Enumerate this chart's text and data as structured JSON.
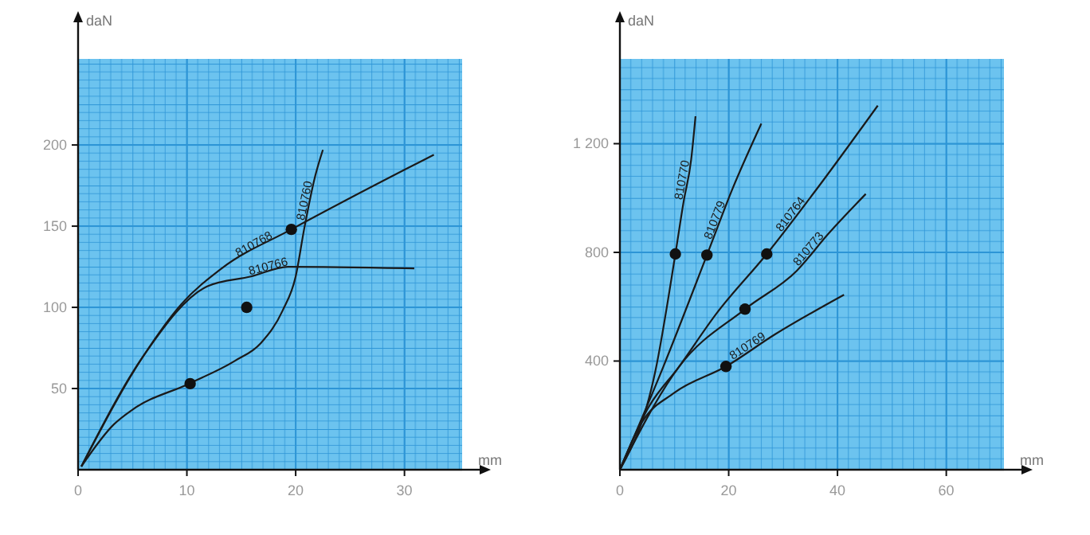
{
  "chart_data": [
    {
      "type": "line",
      "xlabel": "mm",
      "ylabel": "daN",
      "xlim": [
        0,
        35.3
      ],
      "ylim": [
        0,
        253
      ],
      "xticks": [
        0,
        10,
        20,
        30
      ],
      "yticks": [
        50,
        100,
        150,
        200
      ],
      "grid": true,
      "marker": "none",
      "line_style": "solid",
      "legend": false,
      "series": [
        {
          "name": "810768",
          "color": "#1a1a1a",
          "x": [
            0.3,
            6,
            9.5,
            13.2,
            19.6,
            32.7
          ],
          "values": [
            2,
            70,
            102,
            124,
            148,
            194
          ]
        },
        {
          "name": "810766",
          "color": "#1a1a1a",
          "x": [
            0.3,
            6,
            11.9,
            15.9,
            19.3,
            30.9
          ],
          "values": [
            2,
            70,
            113,
            119,
            125,
            124
          ]
        },
        {
          "name": "810760",
          "color": "#1a1a1a",
          "x": [
            0.3,
            3.3,
            5,
            10.2,
            14.4,
            16.8,
            18.8,
            20,
            20.8,
            21.8,
            22.5
          ],
          "values": [
            2,
            28,
            37,
            53,
            67,
            78,
            98,
            119,
            149,
            181,
            197
          ]
        },
        {
          "type": "scatter",
          "marker": "circle",
          "color": "#111111",
          "x": [
            10.3,
            19.6,
            15.5
          ],
          "values": [
            53,
            148,
            100
          ]
        }
      ]
    },
    {
      "type": "line",
      "xlabel": "mm",
      "ylabel": "daN",
      "xlim": [
        0,
        70.6
      ],
      "ylim": [
        0,
        1512
      ],
      "xticks": [
        0,
        20,
        40,
        60
      ],
      "yticks": [
        400,
        800,
        {
          "value": 1200,
          "label": "1 200"
        }
      ],
      "grid": true,
      "marker": "none",
      "line_style": "solid",
      "legend": false,
      "series": [
        {
          "name": "810770",
          "color": "#1a1a1a",
          "x": [
            0,
            6.5,
            10.2,
            11.7,
            13.1,
            13.9
          ],
          "values": [
            0,
            361,
            794,
            985,
            1141,
            1301
          ]
        },
        {
          "name": "810779",
          "color": "#1a1a1a",
          "x": [
            0,
            8,
            16,
            20.7,
            26
          ],
          "values": [
            0,
            380,
            790,
            1034,
            1274
          ]
        },
        {
          "name": "810764",
          "color": "#1a1a1a",
          "x": [
            0,
            5.1,
            10.9,
            17.8,
            27,
            37.3,
            47.4
          ],
          "values": [
            0,
            224,
            380,
            576,
            794,
            1063,
            1340
          ]
        },
        {
          "name": "810773",
          "color": "#1a1a1a",
          "x": [
            0,
            10.9,
            23,
            32.5,
            38.3,
            45.2
          ],
          "values": [
            0,
            380,
            591,
            732,
            868,
            1015
          ]
        },
        {
          "name": "810769",
          "color": "#1a1a1a",
          "x": [
            0,
            4.1,
            10,
            19.5,
            28.5,
            41.2
          ],
          "values": [
            0,
            176,
            283,
            380,
            498,
            644
          ]
        },
        {
          "type": "scatter",
          "marker": "circle",
          "color": "#111111",
          "x": [
            10.2,
            16,
            27,
            23,
            19.5
          ],
          "values": [
            794,
            790,
            794,
            591,
            380
          ]
        }
      ]
    }
  ]
}
